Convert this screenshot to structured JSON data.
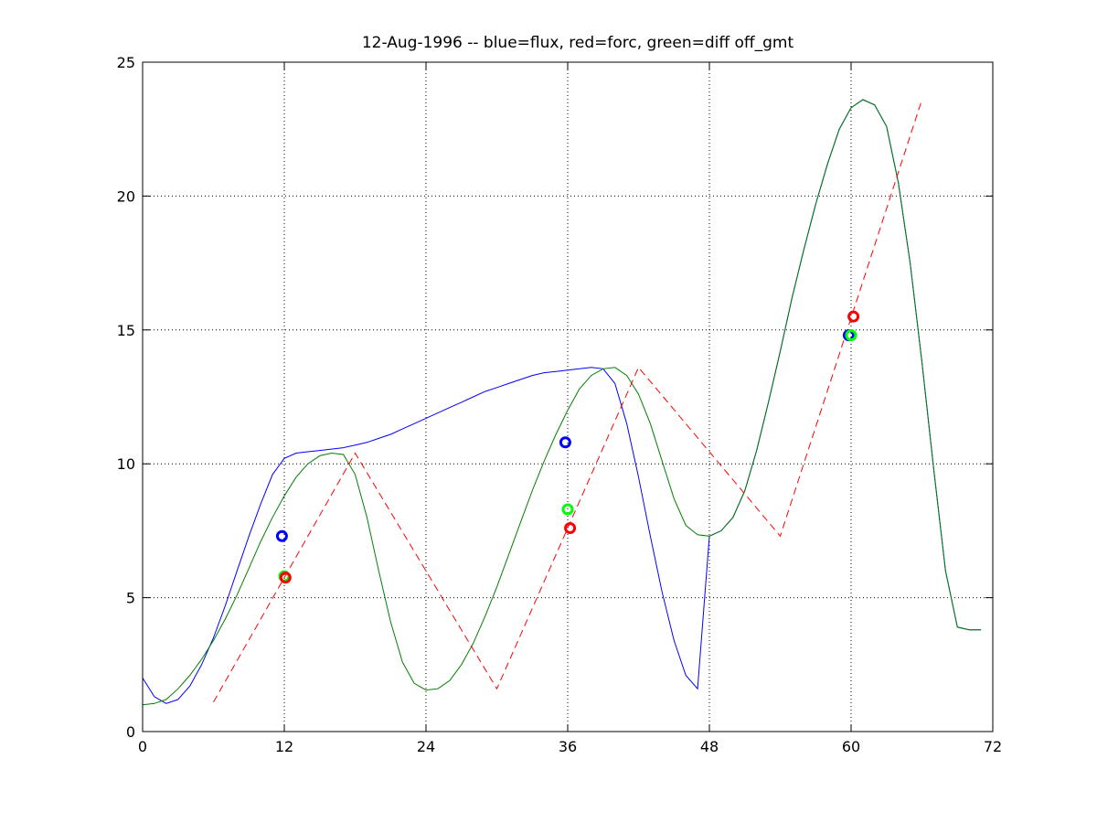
{
  "chart_data": {
    "type": "line",
    "title": "12-Aug-1996 -- blue=flux, red=forc, green=diff off_gmt",
    "xlabel": "",
    "ylabel": "",
    "xlim": [
      0,
      72
    ],
    "ylim": [
      0,
      25
    ],
    "xticks": [
      0,
      12,
      24,
      36,
      48,
      60,
      72
    ],
    "yticks": [
      0,
      5,
      10,
      15,
      20,
      25
    ],
    "grid": true,
    "series": [
      {
        "color": "#0000ff",
        "style": "solid",
        "x": [
          0,
          1,
          2,
          3,
          4,
          5,
          6,
          7,
          8,
          9,
          10,
          11,
          12,
          13,
          14,
          15,
          16,
          17,
          18,
          19,
          20,
          21,
          22,
          23,
          24,
          25,
          26,
          27,
          28,
          29,
          30,
          31,
          32,
          33,
          34,
          35,
          36,
          37,
          38,
          39,
          40,
          41,
          42,
          43,
          44,
          45,
          46,
          47,
          48,
          49,
          50,
          51,
          52,
          53,
          54,
          55,
          56,
          57,
          58,
          59,
          60,
          61,
          62,
          63,
          64,
          65,
          66,
          67,
          68,
          69,
          70,
          71
        ],
        "values": [
          2.0,
          1.3,
          1.05,
          1.2,
          1.7,
          2.5,
          3.5,
          4.7,
          6.0,
          7.3,
          8.5,
          9.6,
          10.2,
          10.4,
          10.45,
          10.5,
          10.55,
          10.6,
          10.7,
          10.8,
          10.95,
          11.1,
          11.3,
          11.5,
          11.7,
          11.9,
          12.1,
          12.3,
          12.5,
          12.7,
          12.85,
          13.0,
          13.15,
          13.3,
          13.4,
          13.45,
          13.5,
          13.55,
          13.6,
          13.55,
          13.0,
          11.5,
          9.5,
          7.3,
          5.2,
          3.4,
          2.1,
          1.6,
          7.3,
          7.5,
          8.0,
          9.0,
          10.5,
          12.3,
          14.2,
          16.2,
          18.0,
          19.7,
          21.2,
          22.5,
          23.3,
          23.6,
          23.4,
          22.6,
          20.5,
          17.5,
          13.8,
          9.8,
          6.0,
          3.9,
          3.8,
          3.8
        ]
      },
      {
        "color": "#008000",
        "style": "solid",
        "x": [
          0,
          1,
          2,
          3,
          4,
          5,
          6,
          7,
          8,
          9,
          10,
          11,
          12,
          13,
          14,
          15,
          16,
          17,
          18,
          19,
          20,
          21,
          22,
          23,
          24,
          25,
          26,
          27,
          28,
          29,
          30,
          31,
          32,
          33,
          34,
          35,
          36,
          37,
          38,
          39,
          40,
          41,
          42,
          43,
          44,
          45,
          46,
          47,
          48,
          49,
          50,
          51,
          52,
          53,
          54,
          55,
          56,
          57,
          58,
          59,
          60,
          61,
          62,
          63,
          64,
          65,
          66,
          67,
          68,
          69,
          70,
          71
        ],
        "values": [
          1.0,
          1.05,
          1.2,
          1.6,
          2.1,
          2.7,
          3.4,
          4.2,
          5.1,
          6.1,
          7.1,
          8.0,
          8.8,
          9.5,
          10.0,
          10.3,
          10.4,
          10.35,
          9.6,
          8.0,
          6.0,
          4.1,
          2.6,
          1.8,
          1.55,
          1.6,
          1.9,
          2.5,
          3.3,
          4.3,
          5.4,
          6.6,
          7.8,
          9.0,
          10.1,
          11.1,
          12.0,
          12.8,
          13.3,
          13.55,
          13.6,
          13.3,
          12.6,
          11.5,
          10.1,
          8.7,
          7.7,
          7.35,
          7.3,
          7.5,
          8.0,
          9.0,
          10.5,
          12.3,
          14.2,
          16.2,
          18.0,
          19.7,
          21.2,
          22.5,
          23.3,
          23.6,
          23.4,
          22.6,
          20.5,
          17.5,
          13.8,
          9.8,
          6.0,
          3.9,
          3.8,
          3.8
        ]
      },
      {
        "color": "#ff0000",
        "style": "dashed",
        "x": [
          6,
          18,
          30,
          42,
          54,
          66
        ],
        "values": [
          1.1,
          10.4,
          1.6,
          13.6,
          7.3,
          23.6
        ]
      }
    ],
    "markers": [
      {
        "color": "#0000ff",
        "x": 11.8,
        "y": 7.3
      },
      {
        "color": "#00ff00",
        "x": 12.0,
        "y": 5.8
      },
      {
        "color": "#ff0000",
        "x": 12.1,
        "y": 5.75
      },
      {
        "color": "#0000ff",
        "x": 35.8,
        "y": 10.8
      },
      {
        "color": "#00ff00",
        "x": 36.0,
        "y": 8.3
      },
      {
        "color": "#ff0000",
        "x": 36.2,
        "y": 7.6
      },
      {
        "color": "#0000ff",
        "x": 59.8,
        "y": 14.8
      },
      {
        "color": "#00ff00",
        "x": 60.0,
        "y": 14.8
      },
      {
        "color": "#ff0000",
        "x": 60.2,
        "y": 15.5
      }
    ]
  }
}
